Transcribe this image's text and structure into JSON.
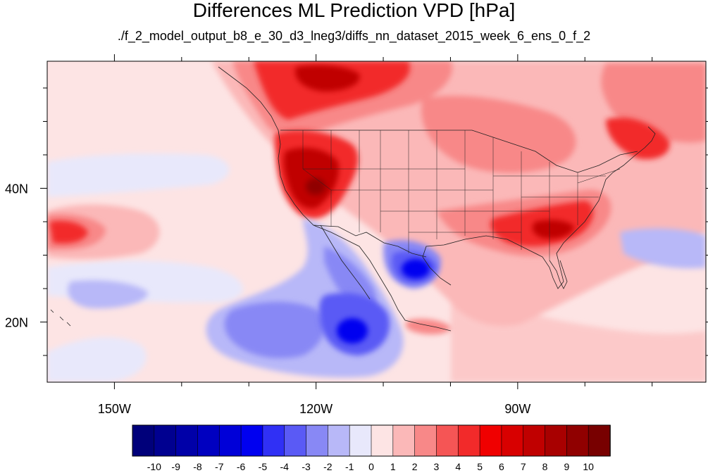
{
  "title": "Differences ML Prediction VPD [hPa]",
  "subtitle": "./f_2_model_output_b8_e_30_d3_lneg3/diffs_nn_dataset_2015_week_6_ens_0_f_2",
  "axes": {
    "lon_range": [
      -160,
      -62
    ],
    "lat_range": [
      11,
      59
    ],
    "x_ticks": [
      {
        "lon": -150,
        "label": "150W"
      },
      {
        "lon": -120,
        "label": "120W"
      },
      {
        "lon": -90,
        "label": "90W"
      }
    ],
    "y_ticks": [
      {
        "lat": 40,
        "label": "40N"
      },
      {
        "lat": 20,
        "label": "20N"
      }
    ]
  },
  "colorbar": {
    "labels": [
      "-10",
      "-9",
      "-8",
      "-7",
      "-6",
      "-5",
      "-4",
      "-3",
      "-2",
      "-1",
      "0",
      "1",
      "2",
      "3",
      "4",
      "5",
      "6",
      "7",
      "8",
      "9",
      "10"
    ],
    "colors": [
      "#00007a",
      "#000090",
      "#0000a8",
      "#0000c0",
      "#0000d8",
      "#0000f0",
      "#3030f5",
      "#5a5af5",
      "#8888f5",
      "#b8b8f8",
      "#e8e8fb",
      "#fde4e4",
      "#fbb8b8",
      "#f88888",
      "#f55555",
      "#f22a2a",
      "#f00000",
      "#d80000",
      "#c00000",
      "#a80000",
      "#900000",
      "#780000"
    ]
  },
  "map_regions": [
    {
      "name": "pacific-pale-pink",
      "level": 1,
      "color": "#fde4e4"
    },
    {
      "name": "canada-red",
      "level": 5,
      "color": "#f22a2a"
    },
    {
      "name": "west-coast-dark-red",
      "level": 8,
      "color": "#c00000"
    },
    {
      "name": "southeast-red",
      "level": 5,
      "color": "#f22a2a"
    },
    {
      "name": "mexico-blue",
      "level": -5,
      "color": "#0000f0"
    },
    {
      "name": "baja-ocean-blue",
      "level": -3,
      "color": "#5a5af5"
    },
    {
      "name": "pacific-red-patch",
      "level": 3,
      "color": "#f88888"
    }
  ]
}
